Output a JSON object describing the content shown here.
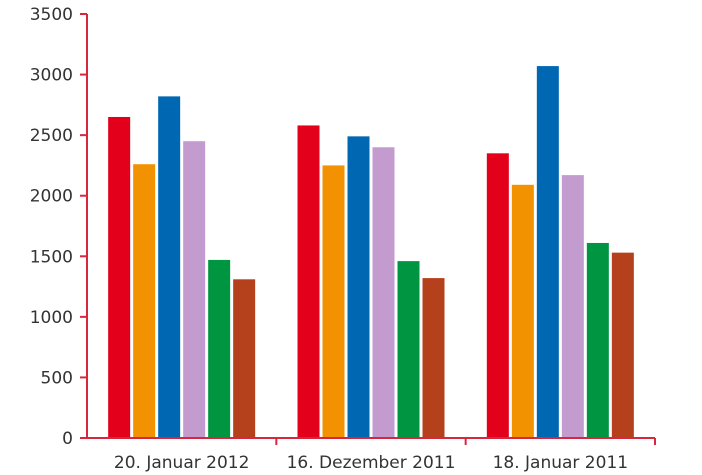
{
  "chart_data": {
    "type": "bar",
    "title": "",
    "xlabel": "",
    "ylabel": "",
    "categories": [
      "20. Januar 2012",
      "16. Dezember 2011",
      "18. Januar 2011"
    ],
    "ylim": [
      0,
      3500
    ],
    "yticks": [
      0,
      500,
      1000,
      1500,
      2000,
      2500,
      3000,
      3500
    ],
    "grid": false,
    "legend": "none",
    "axis_color": "#d9263f",
    "series": [
      {
        "color": "#e3001b",
        "values": [
          2650,
          2580,
          2350
        ]
      },
      {
        "color": "#f39200",
        "values": [
          2260,
          2250,
          2090
        ]
      },
      {
        "color": "#0067b3",
        "values": [
          2820,
          2490,
          3070
        ]
      },
      {
        "color": "#c39bcf",
        "values": [
          2450,
          2400,
          2170
        ]
      },
      {
        "color": "#009540",
        "values": [
          1470,
          1460,
          1610
        ]
      },
      {
        "color": "#b5401c",
        "values": [
          1310,
          1320,
          1530
        ]
      }
    ]
  }
}
